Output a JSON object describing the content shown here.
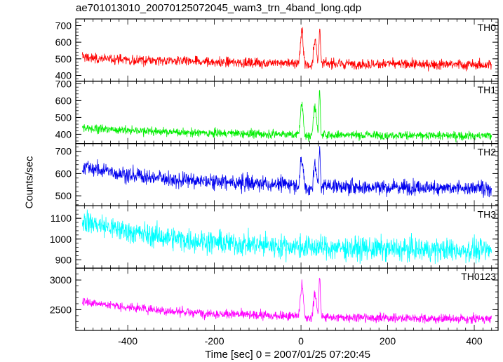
{
  "chart_data": {
    "type": "line",
    "title": "ae701013010_20070125072045_wam3_trn_4band_long.qdp",
    "xlabel": "Time [sec] 0 = 2007/01/25 07:20:45",
    "ylabel": "Counts/sec",
    "xlim": [
      -520,
      455
    ],
    "xticks": [
      -400,
      -200,
      0,
      200,
      400
    ],
    "panels": [
      {
        "name": "TH0",
        "color": "#ff0000",
        "ylim": [
          365,
          740
        ],
        "yticks": [
          400,
          500,
          600,
          700
        ],
        "start_level": 510,
        "end_level": 450,
        "baseline_mid": 470,
        "noise": 22,
        "peaks": [
          {
            "x": 2,
            "value": 680
          },
          {
            "x": 32,
            "value": 640
          },
          {
            "x": 43,
            "value": 740
          }
        ]
      },
      {
        "name": "TH1",
        "color": "#00ee00",
        "ylim": [
          345,
          715
        ],
        "yticks": [
          400,
          500,
          600,
          700
        ],
        "start_level": 440,
        "end_level": 380,
        "baseline_mid": 395,
        "noise": 18,
        "peaks": [
          {
            "x": 2,
            "value": 610
          },
          {
            "x": 32,
            "value": 600
          },
          {
            "x": 43,
            "value": 700
          }
        ]
      },
      {
        "name": "TH2",
        "color": "#0000ee",
        "ylim": [
          455,
          735
        ],
        "yticks": [
          500,
          600,
          700
        ],
        "start_level": 630,
        "end_level": 520,
        "baseline_mid": 540,
        "noise": 25,
        "peaks": [
          {
            "x": 2,
            "value": 670
          },
          {
            "x": 32,
            "value": 650
          },
          {
            "x": 43,
            "value": 735
          }
        ]
      },
      {
        "name": "TH3",
        "color": "#00ffff",
        "ylim": [
          860,
          1160
        ],
        "yticks": [
          900,
          1000,
          1100
        ],
        "start_level": 1090,
        "end_level": 930,
        "baseline_mid": 950,
        "noise": 40,
        "peaks": []
      },
      {
        "name": "TH0123",
        "color": "#ff00ff",
        "ylim": [
          2150,
          3200
        ],
        "yticks": [
          2500,
          3000
        ],
        "start_level": 2650,
        "end_level": 2300,
        "baseline_mid": 2360,
        "noise": 55,
        "peaks": [
          {
            "x": 2,
            "value": 2980
          },
          {
            "x": 32,
            "value": 2850
          },
          {
            "x": 43,
            "value": 3180
          }
        ]
      }
    ]
  }
}
